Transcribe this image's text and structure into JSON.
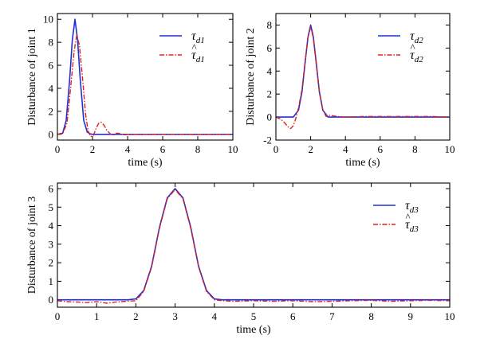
{
  "chart_data": [
    {
      "type": "line",
      "title": "",
      "xlabel": "time (s)",
      "ylabel": "Disturbance of joint 1",
      "xlim": [
        0,
        10
      ],
      "ylim": [
        -0.5,
        10.5
      ],
      "xticks": [
        0,
        2,
        4,
        6,
        8,
        10
      ],
      "yticks": [
        0,
        2,
        4,
        6,
        8,
        10
      ],
      "x_tick_labels": [
        "0",
        "2",
        "4",
        "6",
        "8",
        "10"
      ],
      "y_tick_labels": [
        "0",
        "2",
        "4",
        "6",
        "8",
        "10"
      ],
      "legend_position": "top-right",
      "series": [
        {
          "name": "τd1",
          "legend_main": "τ",
          "legend_sub": "d1",
          "hat": false,
          "color": "#1f2fd6",
          "style": "solid",
          "x": [
            0,
            0.3,
            0.5,
            0.7,
            0.85,
            1.0,
            1.15,
            1.3,
            1.5,
            1.7,
            1.85,
            2.0,
            2.5,
            3,
            4,
            6,
            8,
            10
          ],
          "y": [
            0,
            0.1,
            1.2,
            4.8,
            8.2,
            10.0,
            8.2,
            4.8,
            1.2,
            0.2,
            0.05,
            0,
            0,
            0,
            0,
            0,
            0,
            0
          ]
        },
        {
          "name": "τ̂d1",
          "legend_main": "τ",
          "legend_sub": "d1",
          "hat": true,
          "color": "#e0201b",
          "style": "dashdot",
          "x": [
            0,
            0.3,
            0.55,
            0.75,
            0.95,
            1.1,
            1.25,
            1.45,
            1.6,
            1.75,
            1.9,
            2.05,
            2.2,
            2.35,
            2.5,
            2.65,
            2.8,
            3.0,
            3.2,
            3.4,
            3.6,
            3.8,
            4.0,
            6,
            8,
            10
          ],
          "y": [
            0,
            0.05,
            1.0,
            4.0,
            7.2,
            8.6,
            7.8,
            4.6,
            1.8,
            0.3,
            -0.2,
            -0.1,
            0.5,
            0.95,
            1.05,
            0.8,
            0.4,
            0.05,
            -0.05,
            0.1,
            0.05,
            -0.05,
            0,
            0,
            0,
            0
          ]
        }
      ]
    },
    {
      "type": "line",
      "title": "",
      "xlabel": "time (s)",
      "ylabel": "Disturbance of joint 2",
      "xlim": [
        0,
        10
      ],
      "ylim": [
        -2,
        9
      ],
      "xticks": [
        0,
        2,
        4,
        6,
        8,
        10
      ],
      "yticks": [
        -2,
        0,
        2,
        4,
        6,
        8
      ],
      "x_tick_labels": [
        "0",
        "2",
        "4",
        "6",
        "8",
        "10"
      ],
      "y_tick_labels": [
        "-2",
        "0",
        "2",
        "4",
        "6",
        "8"
      ],
      "legend_position": "top-right",
      "series": [
        {
          "name": "τd2",
          "legend_main": "τ",
          "legend_sub": "d2",
          "hat": false,
          "color": "#1f2fd6",
          "style": "solid",
          "x": [
            0,
            1.0,
            1.3,
            1.5,
            1.7,
            1.85,
            2.0,
            2.15,
            2.3,
            2.5,
            2.7,
            3.0,
            4,
            6,
            8,
            10
          ],
          "y": [
            0,
            0,
            0.6,
            2.2,
            5.0,
            7.0,
            8.0,
            7.0,
            5.0,
            2.2,
            0.6,
            0,
            0,
            0,
            0,
            0
          ]
        },
        {
          "name": "τ̂d2",
          "legend_main": "τ",
          "legend_sub": "d2",
          "hat": true,
          "color": "#e0201b",
          "style": "dashdot",
          "x": [
            0,
            0.3,
            0.5,
            0.7,
            0.85,
            1.0,
            1.15,
            1.3,
            1.5,
            1.7,
            1.85,
            2.0,
            2.15,
            2.3,
            2.5,
            2.7,
            2.9,
            3.1,
            3.3,
            3.6,
            4.0,
            5.0,
            6.0,
            7.0,
            8.0,
            9.0,
            10
          ],
          "y": [
            0,
            -0.2,
            -0.5,
            -0.85,
            -1.0,
            -0.75,
            -0.1,
            0.8,
            2.4,
            5.1,
            7.0,
            7.8,
            6.9,
            4.9,
            2.2,
            0.6,
            0.05,
            0.15,
            0.1,
            0.05,
            0,
            0.05,
            0.05,
            0.05,
            0.05,
            0.05,
            0
          ]
        }
      ]
    },
    {
      "type": "line",
      "title": "",
      "xlabel": "time (s)",
      "ylabel": "Disturbance of joint 3",
      "xlim": [
        0,
        10
      ],
      "ylim": [
        -0.4,
        6.3
      ],
      "xticks": [
        0,
        1,
        2,
        3,
        4,
        5,
        6,
        7,
        8,
        9,
        10
      ],
      "yticks": [
        0,
        1,
        2,
        3,
        4,
        5,
        6
      ],
      "x_tick_labels": [
        "0",
        "1",
        "2",
        "3",
        "4",
        "5",
        "6",
        "7",
        "8",
        "9",
        "10"
      ],
      "y_tick_labels": [
        "0",
        "1",
        "2",
        "3",
        "4",
        "5",
        "6"
      ],
      "legend_position": "top-right",
      "series": [
        {
          "name": "τd3",
          "legend_main": "τ",
          "legend_sub": "d3",
          "hat": false,
          "color": "#1f2fd6",
          "style": "solid",
          "x": [
            0,
            1.8,
            2.0,
            2.2,
            2.4,
            2.6,
            2.8,
            3.0,
            3.2,
            3.4,
            3.6,
            3.8,
            4.0,
            4.2,
            5,
            6,
            7,
            8,
            9,
            10
          ],
          "y": [
            0,
            0,
            0.05,
            0.5,
            1.8,
            3.9,
            5.5,
            6.0,
            5.5,
            3.9,
            1.8,
            0.5,
            0.05,
            0,
            0,
            0,
            0,
            0,
            0,
            0
          ]
        },
        {
          "name": "τ̂d3",
          "legend_main": "τ",
          "legend_sub": "d3",
          "hat": true,
          "color": "#e0201b",
          "style": "dashdot",
          "x": [
            0,
            0.25,
            0.5,
            0.75,
            1.0,
            1.25,
            1.5,
            1.75,
            2.0,
            2.2,
            2.4,
            2.6,
            2.8,
            3.0,
            3.2,
            3.4,
            3.6,
            3.8,
            4.0,
            4.2,
            4.5,
            5.0,
            5.5,
            6.0,
            6.5,
            7.0,
            7.5,
            8.0,
            8.5,
            9.0,
            9.5,
            10
          ],
          "y": [
            -0.05,
            -0.1,
            -0.12,
            -0.15,
            -0.1,
            -0.18,
            -0.12,
            -0.08,
            -0.05,
            0.45,
            1.75,
            3.85,
            5.45,
            5.95,
            5.45,
            3.85,
            1.75,
            0.45,
            0.0,
            -0.05,
            -0.08,
            -0.05,
            -0.08,
            -0.05,
            -0.1,
            -0.08,
            -0.05,
            -0.03,
            -0.08,
            -0.05,
            -0.03,
            -0.05
          ]
        }
      ]
    }
  ]
}
